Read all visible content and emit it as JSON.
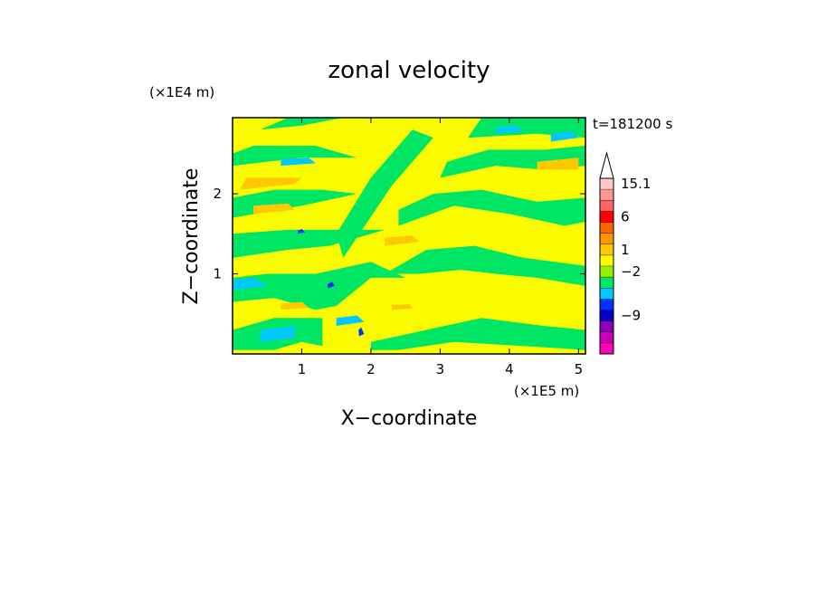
{
  "chart_data": {
    "type": "heatmap",
    "title": "zonal velocity",
    "xlabel": "X−coordinate",
    "ylabel": "Z−coordinate",
    "x_unit": "(×1E5 m)",
    "y_unit": "(×1E4 m)",
    "time_label": "t=181200 s",
    "xlim": [
      0.0,
      5.1
    ],
    "ylim": [
      0.0,
      2.95
    ],
    "xticks": [
      1,
      2,
      3,
      4,
      5
    ],
    "yticks": [
      1,
      2
    ],
    "colorbar": {
      "colors": [
        "#ff00b4",
        "#c800b4",
        "#8c00b4",
        "#0000c8",
        "#0032ff",
        "#00c8ff",
        "#00e664",
        "#96f000",
        "#fafa00",
        "#ffc800",
        "#ff9600",
        "#ff6400",
        "#ff0000",
        "#ff6464",
        "#ff9696",
        "#ffc8c8"
      ],
      "labels": [
        {
          "text": "15.1",
          "bin": 15
        },
        {
          "text": "6",
          "bin": 12
        },
        {
          "text": "1",
          "bin": 9
        },
        {
          "text": "−2",
          "bin": 7
        },
        {
          "text": "−9",
          "bin": 3
        }
      ]
    },
    "field": {
      "background": "#fafa00",
      "bands": [
        {
          "level": "green",
          "color": "#00e664",
          "points": [
            [
              0.0,
              0.05
            ],
            [
              0.6,
              0.05
            ],
            [
              1.0,
              0.15
            ],
            [
              1.3,
              0.1
            ],
            [
              1.3,
              0.45
            ],
            [
              0.6,
              0.45
            ],
            [
              0.0,
              0.3
            ]
          ]
        },
        {
          "level": "green",
          "color": "#00e664",
          "points": [
            [
              0.0,
              0.65
            ],
            [
              0.6,
              0.7
            ],
            [
              1.2,
              0.55
            ],
            [
              1.5,
              0.6
            ],
            [
              2.0,
              0.95
            ],
            [
              2.5,
              0.95
            ],
            [
              2.0,
              1.15
            ],
            [
              1.2,
              1.0
            ],
            [
              0.5,
              1.0
            ],
            [
              0.0,
              0.95
            ]
          ]
        },
        {
          "level": "green",
          "color": "#00e664",
          "points": [
            [
              0.0,
              1.2
            ],
            [
              0.8,
              1.3
            ],
            [
              1.4,
              1.35
            ],
            [
              2.2,
              1.55
            ],
            [
              1.5,
              1.55
            ],
            [
              0.8,
              1.55
            ],
            [
              0.0,
              1.5
            ]
          ]
        },
        {
          "level": "green",
          "color": "#00e664",
          "points": [
            [
              0.0,
              1.7
            ],
            [
              1.0,
              1.85
            ],
            [
              1.8,
              2.0
            ],
            [
              1.3,
              2.05
            ],
            [
              0.6,
              2.05
            ],
            [
              0.0,
              1.95
            ]
          ]
        },
        {
          "level": "green",
          "color": "#00e664",
          "points": [
            [
              0.0,
              2.35
            ],
            [
              1.0,
              2.45
            ],
            [
              1.8,
              2.45
            ],
            [
              1.2,
              2.6
            ],
            [
              0.3,
              2.6
            ],
            [
              0.0,
              2.5
            ]
          ]
        },
        {
          "level": "green",
          "color": "#00e664",
          "points": [
            [
              0.4,
              2.8
            ],
            [
              1.0,
              2.85
            ],
            [
              1.6,
              2.95
            ],
            [
              0.8,
              2.95
            ]
          ]
        },
        {
          "level": "green",
          "color": "#00e664",
          "points": [
            [
              2.2,
              1.0
            ],
            [
              2.8,
              1.3
            ],
            [
              3.5,
              1.35
            ],
            [
              4.2,
              1.2
            ],
            [
              5.1,
              1.1
            ],
            [
              5.1,
              0.85
            ],
            [
              4.4,
              0.95
            ],
            [
              3.8,
              1.0
            ],
            [
              3.3,
              1.05
            ],
            [
              2.7,
              1.0
            ]
          ]
        },
        {
          "level": "green",
          "color": "#00e664",
          "points": [
            [
              2.4,
              1.6
            ],
            [
              3.2,
              1.85
            ],
            [
              4.0,
              1.75
            ],
            [
              4.8,
              1.6
            ],
            [
              5.1,
              1.65
            ],
            [
              5.1,
              1.95
            ],
            [
              4.4,
              1.9
            ],
            [
              3.6,
              2.05
            ],
            [
              2.9,
              2.0
            ],
            [
              2.4,
              1.8
            ]
          ]
        },
        {
          "level": "green",
          "color": "#00e664",
          "points": [
            [
              3.0,
              2.2
            ],
            [
              3.8,
              2.35
            ],
            [
              4.5,
              2.3
            ],
            [
              5.1,
              2.35
            ],
            [
              5.1,
              2.6
            ],
            [
              4.5,
              2.55
            ],
            [
              3.7,
              2.55
            ],
            [
              3.1,
              2.4
            ]
          ]
        },
        {
          "level": "green",
          "color": "#00e664",
          "points": [
            [
              3.4,
              2.7
            ],
            [
              4.4,
              2.75
            ],
            [
              5.1,
              2.7
            ],
            [
              5.1,
              2.95
            ],
            [
              3.6,
              2.95
            ]
          ]
        },
        {
          "level": "green",
          "color": "#00e664",
          "points": [
            [
              2.0,
              0.15
            ],
            [
              2.8,
              0.3
            ],
            [
              3.6,
              0.45
            ],
            [
              4.5,
              0.35
            ],
            [
              5.1,
              0.3
            ],
            [
              5.1,
              0.05
            ],
            [
              4.2,
              0.1
            ],
            [
              3.2,
              0.15
            ],
            [
              2.4,
              0.05
            ],
            [
              2.0,
              0.05
            ]
          ]
        },
        {
          "level": "green",
          "color": "#00e664",
          "points": [
            [
              1.6,
              1.2
            ],
            [
              2.3,
              2.1
            ],
            [
              2.9,
              2.7
            ],
            [
              2.6,
              2.8
            ],
            [
              2.0,
              2.2
            ],
            [
              1.5,
              1.5
            ]
          ]
        },
        {
          "level": "cyan",
          "color": "#00c8ff",
          "points": [
            [
              0.4,
              0.15
            ],
            [
              0.9,
              0.2
            ],
            [
              0.9,
              0.35
            ],
            [
              0.4,
              0.3
            ]
          ]
        },
        {
          "level": "cyan",
          "color": "#00c8ff",
          "points": [
            [
              0.0,
              0.8
            ],
            [
              0.5,
              0.85
            ],
            [
              0.3,
              0.95
            ],
            [
              0.0,
              0.92
            ]
          ]
        },
        {
          "level": "cyan",
          "color": "#00c8ff",
          "points": [
            [
              0.7,
              2.35
            ],
            [
              1.2,
              2.38
            ],
            [
              1.1,
              2.45
            ],
            [
              0.7,
              2.43
            ]
          ]
        },
        {
          "level": "cyan",
          "color": "#00c8ff",
          "points": [
            [
              3.8,
              2.75
            ],
            [
              4.2,
              2.78
            ],
            [
              4.1,
              2.85
            ],
            [
              3.8,
              2.83
            ]
          ]
        },
        {
          "level": "cyan",
          "color": "#00c8ff",
          "points": [
            [
              4.6,
              2.65
            ],
            [
              5.0,
              2.7
            ],
            [
              4.9,
              2.78
            ],
            [
              4.6,
              2.75
            ]
          ]
        },
        {
          "level": "cyan",
          "color": "#00c8ff",
          "points": [
            [
              1.5,
              0.35
            ],
            [
              1.9,
              0.4
            ],
            [
              1.8,
              0.48
            ],
            [
              1.5,
              0.45
            ]
          ]
        },
        {
          "level": "orange",
          "color": "#ffc800",
          "points": [
            [
              0.1,
              2.05
            ],
            [
              0.9,
              2.12
            ],
            [
              1.0,
              2.2
            ],
            [
              0.2,
              2.2
            ]
          ]
        },
        {
          "level": "orange",
          "color": "#ffc800",
          "points": [
            [
              0.3,
              1.75
            ],
            [
              0.9,
              1.8
            ],
            [
              0.8,
              1.88
            ],
            [
              0.3,
              1.85
            ]
          ]
        },
        {
          "level": "orange",
          "color": "#ffc800",
          "points": [
            [
              4.4,
              2.3
            ],
            [
              5.0,
              2.3
            ],
            [
              5.0,
              2.45
            ],
            [
              4.4,
              2.4
            ]
          ]
        },
        {
          "level": "orange",
          "color": "#ffc800",
          "points": [
            [
              2.2,
              1.35
            ],
            [
              2.7,
              1.4
            ],
            [
              2.6,
              1.48
            ],
            [
              2.2,
              1.45
            ]
          ]
        },
        {
          "level": "orange",
          "color": "#ffc800",
          "points": [
            [
              0.7,
              0.55
            ],
            [
              1.1,
              0.58
            ],
            [
              1.0,
              0.65
            ],
            [
              0.7,
              0.63
            ]
          ]
        },
        {
          "level": "orange",
          "color": "#ffc800",
          "points": [
            [
              2.3,
              0.55
            ],
            [
              2.6,
              0.57
            ],
            [
              2.55,
              0.62
            ],
            [
              2.3,
              0.61
            ]
          ]
        },
        {
          "level": "blue",
          "color": "#0032ff",
          "points": [
            [
              1.38,
              0.82
            ],
            [
              1.48,
              0.85
            ],
            [
              1.44,
              0.9
            ],
            [
              1.37,
              0.87
            ]
          ]
        },
        {
          "level": "blue",
          "color": "#0032ff",
          "points": [
            [
              1.83,
              0.22
            ],
            [
              1.9,
              0.25
            ],
            [
              1.86,
              0.33
            ],
            [
              1.82,
              0.3
            ]
          ]
        },
        {
          "level": "blue",
          "color": "#0032ff",
          "points": [
            [
              0.95,
              1.5
            ],
            [
              1.05,
              1.52
            ],
            [
              1.0,
              1.56
            ],
            [
              0.94,
              1.54
            ]
          ]
        }
      ]
    }
  }
}
